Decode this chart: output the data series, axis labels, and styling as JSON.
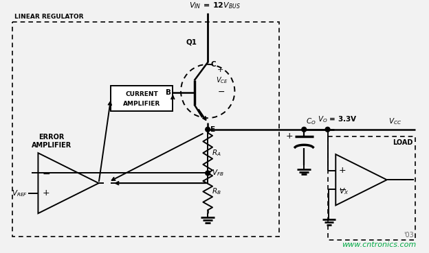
{
  "bg_color": "#f2f2f2",
  "line_color": "#000000",
  "watermark_color": "#00aa44",
  "watermark": "www.cntronics.com",
  "title_label": "LINEAR REGULATOR",
  "year_label": "'03"
}
